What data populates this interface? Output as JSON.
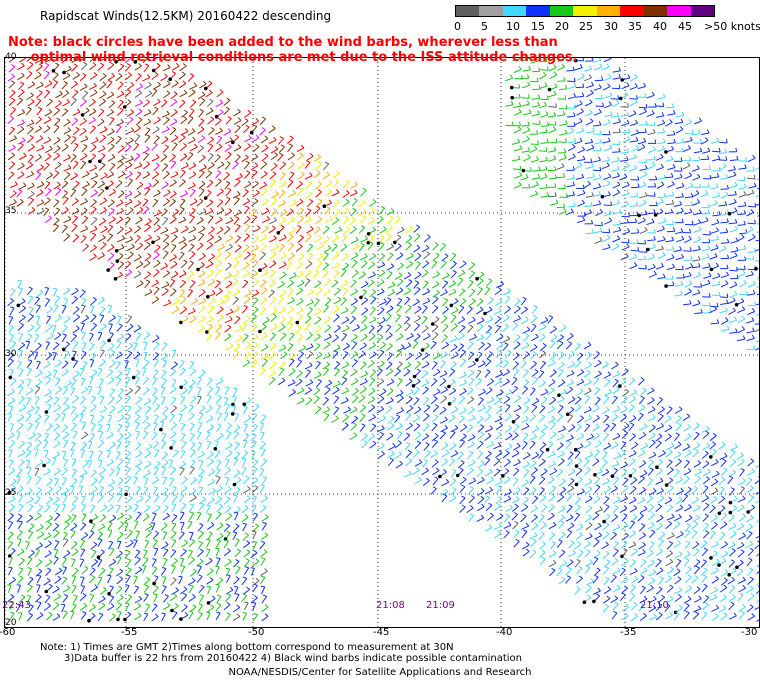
{
  "title": "Rapidscat Winds(12.5KM) 20160422 descending",
  "warning_lines": [
    "Note: black circles have been added to the wind barbs, wherever less than",
    "     optimal wind retrieval conditions are met due to the ISS attitude changes."
  ],
  "legend": {
    "ticks": [
      "0",
      "5",
      "10",
      "15",
      "20",
      "25",
      "30",
      "35",
      "40",
      "45",
      ">50 knots"
    ],
    "colors": [
      "#606060",
      "#a0a0a0",
      "#40d8ff",
      "#1030ff",
      "#18c818",
      "#f0f000",
      "#ffb000",
      "#ff0000",
      "#803000",
      "#ff00ff",
      "#600080"
    ]
  },
  "map": {
    "lat_labels": [
      "40",
      "35",
      "30",
      "25",
      "20"
    ],
    "lon_labels": [
      "-60",
      "-55",
      "-50",
      "-45",
      "-40",
      "-35",
      "-30"
    ],
    "lat_range": [
      20,
      40
    ],
    "lon_range": [
      -60,
      -30
    ],
    "time_labels": [
      "22:43",
      "21:08",
      "21:09",
      "21:10"
    ]
  },
  "footer_notes": [
    "Note: 1) Times are GMT 2)Times along bottom correspond to measurement at 30N",
    "3)Data buffer is 22 hrs from 20160422 4) Black wind barbs indicate possible contamination"
  ],
  "credit": "NOAA/NESDIS/Center for Satellite Applications and Research"
}
